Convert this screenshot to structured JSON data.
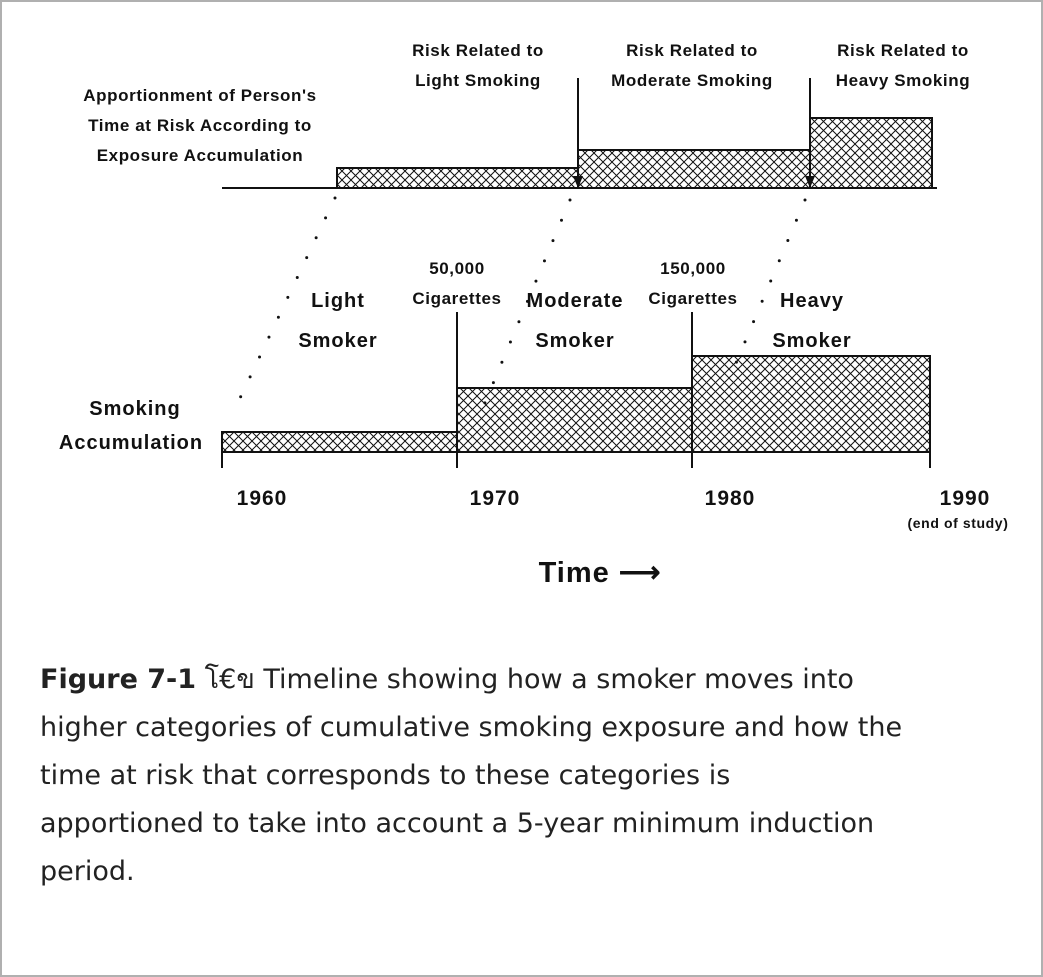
{
  "diagram": {
    "top_label": [
      "Apportionment of Person's",
      "Time at Risk According to",
      "Exposure Accumulation"
    ],
    "risk_labels": [
      [
        "Risk Related to",
        "Light Smoking"
      ],
      [
        "Risk Related to",
        "Moderate Smoking"
      ],
      [
        "Risk Related to",
        "Heavy Smoking"
      ]
    ],
    "thresholds": [
      [
        "50,000",
        "Cigarettes"
      ],
      [
        "150,000",
        "Cigarettes"
      ]
    ],
    "smoker_labels": [
      [
        "Light",
        "Smoker"
      ],
      [
        "Moderate",
        "Smoker"
      ],
      [
        "Heavy",
        "Smoker"
      ]
    ],
    "bottom_label": [
      "Smoking",
      "Accumulation"
    ],
    "years": [
      "1960",
      "1970",
      "1980",
      "1990"
    ],
    "end_note": "(end of study)",
    "axis_title": "Time ⟶"
  },
  "caption": {
    "label": "Figure 7-1",
    "lines": [
      "โ€ข Timeline showing how a smoker moves into",
      "higher categories of cumulative smoking exposure and how the",
      "time at risk that corresponds to these categories is",
      "apportioned to take into account a 5-year minimum induction",
      "period."
    ]
  }
}
